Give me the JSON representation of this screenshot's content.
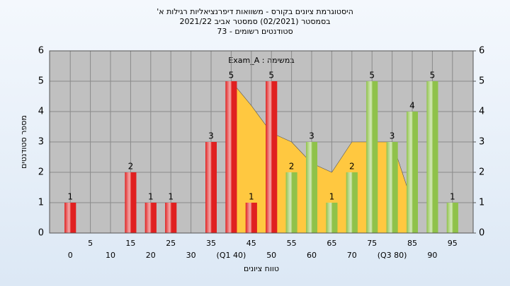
{
  "chart_data": {
    "type": "bar",
    "title": [
      "היסטוגרמת ציונים בקורס - משוואות דיפרנציאליות רגילות א'",
      "בסמסטר (02/2021) סמסטר אביב 2021/22",
      "סטודנטים רשומים - 73"
    ],
    "legend_text": "Exam_A : במשימה",
    "x_label": "טווח ציונים",
    "y_label": "מספר סטודנטים",
    "categories": [
      "0",
      "5",
      "10",
      "15",
      "20",
      "25",
      "30",
      "35",
      "(Q1 40)",
      "45",
      "50",
      "55",
      "60",
      "65",
      "70",
      "75",
      "(Q3 80)",
      "85",
      "90",
      "95"
    ],
    "values": [
      1,
      0,
      0,
      2,
      1,
      1,
      0,
      3,
      5,
      1,
      5,
      2,
      3,
      1,
      2,
      5,
      3,
      4,
      5,
      1
    ],
    "colors": [
      "#e02020",
      "#e02020",
      "#e02020",
      "#e02020",
      "#e02020",
      "#e02020",
      "#e02020",
      "#e02020",
      "#e02020",
      "#e02020",
      "#e02020",
      "#8fc24a",
      "#8fc24a",
      "#8fc24a",
      "#8fc24a",
      "#8fc24a",
      "#8fc24a",
      "#8fc24a",
      "#8fc24a",
      "#8fc24a"
    ],
    "area": {
      "color": "#ffc840",
      "values": [
        null,
        null,
        null,
        null,
        null,
        null,
        null,
        null,
        5,
        4.2,
        3.3,
        3,
        2.3,
        2,
        3,
        3,
        3,
        1,
        null,
        null
      ]
    },
    "ylim": [
      0,
      6
    ],
    "yticks": [
      0,
      1,
      2,
      3,
      4,
      5,
      6
    ],
    "y2lim": [
      0,
      6
    ],
    "y2ticks": [
      0,
      1,
      2,
      3,
      4,
      5,
      6
    ],
    "grid": true
  }
}
